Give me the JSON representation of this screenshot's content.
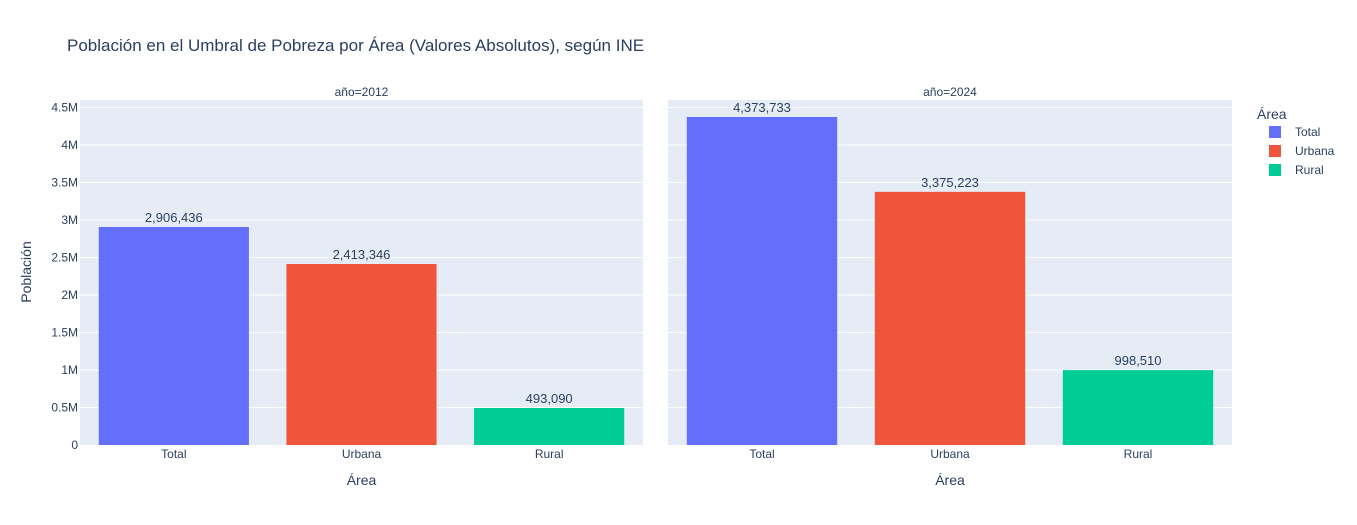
{
  "chart_data": {
    "type": "bar",
    "title": "Población en el Umbral de Pobreza por Área (Valores Absolutos), según INE",
    "ylabel": "Población",
    "xlabel": "Área",
    "ylim": [
      0,
      4600000
    ],
    "yticks": [
      {
        "value": 0,
        "label": "0"
      },
      {
        "value": 500000,
        "label": "0.5M"
      },
      {
        "value": 1000000,
        "label": "1M"
      },
      {
        "value": 1500000,
        "label": "1.5M"
      },
      {
        "value": 2000000,
        "label": "2M"
      },
      {
        "value": 2500000,
        "label": "2.5M"
      },
      {
        "value": 3000000,
        "label": "3M"
      },
      {
        "value": 3500000,
        "label": "3.5M"
      },
      {
        "value": 4000000,
        "label": "4M"
      },
      {
        "value": 4500000,
        "label": "4.5M"
      }
    ],
    "categories": [
      "Total",
      "Urbana",
      "Rural"
    ],
    "colors": {
      "Total": "#636efa",
      "Urbana": "#ef553b",
      "Rural": "#00cc96"
    },
    "grid": true,
    "legend": {
      "title": "Área",
      "placement": "top-right",
      "entries": [
        "Total",
        "Urbana",
        "Rural"
      ]
    },
    "facets": [
      {
        "title": "año=2012",
        "values": [
          2906436,
          2413346,
          493090
        ],
        "labels": [
          "2,906,436",
          "2,413,346",
          "493,090"
        ]
      },
      {
        "title": "año=2024",
        "values": [
          4373733,
          3375223,
          998510
        ],
        "labels": [
          "4,373,733",
          "3,375,223",
          "998,510"
        ]
      }
    ]
  }
}
